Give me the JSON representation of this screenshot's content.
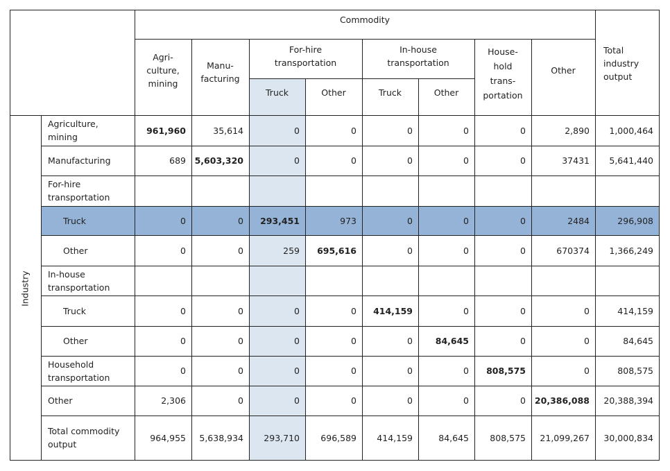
{
  "header": {
    "commodity": "Commodity",
    "industry": "Industry",
    "col_agri": "Agri-\nculture,\nmining",
    "col_manu": "Manu-\nfacturing",
    "col_forhire": "For-hire\ntransportation",
    "col_inhouse": "In-house\ntransportation",
    "col_household": "House-\nhold\ntrans-\nportation",
    "col_other": "Other",
    "col_total": "Total\nindustry\noutput",
    "sub_truck_1": "Truck",
    "sub_other_1": "Other",
    "sub_truck_2": "Truck",
    "sub_other_2": "Other"
  },
  "rows": [
    {
      "label": "Agriculture,\nmining",
      "values": [
        "961,960",
        "35,614",
        "0",
        "0",
        "0",
        "0",
        "0",
        "2,890",
        "1,000,464"
      ]
    },
    {
      "label": "Manufacturing",
      "values": [
        "689",
        "5,603,320",
        "0",
        "0",
        "0",
        "0",
        "0",
        "37431",
        "5,641,440"
      ]
    },
    {
      "label": "For-hire\ntransportation",
      "values": [
        "",
        "",
        "",
        "",
        "",
        "",
        "",
        "",
        ""
      ]
    },
    {
      "label": "Truck",
      "values": [
        "0",
        "0",
        "293,451",
        "973",
        "0",
        "0",
        "0",
        "2484",
        "296,908"
      ]
    },
    {
      "label": "Other",
      "values": [
        "0",
        "0",
        "259",
        "695,616",
        "0",
        "0",
        "0",
        "670374",
        "1,366,249"
      ]
    },
    {
      "label": "In-house\ntransportation",
      "values": [
        "",
        "",
        "",
        "",
        "",
        "",
        "",
        "",
        ""
      ]
    },
    {
      "label": "Truck",
      "values": [
        "0",
        "0",
        "0",
        "0",
        "414,159",
        "0",
        "0",
        "0",
        "414,159"
      ]
    },
    {
      "label": "Other",
      "values": [
        "0",
        "0",
        "0",
        "0",
        "0",
        "84,645",
        "0",
        "0",
        "84,645"
      ]
    },
    {
      "label": "Household\ntransportation",
      "values": [
        "0",
        "0",
        "0",
        "0",
        "0",
        "0",
        "808,575",
        "0",
        "808,575"
      ]
    },
    {
      "label": "Other",
      "values": [
        "2,306",
        "0",
        "0",
        "0",
        "0",
        "0",
        "0",
        "20,386,088",
        "20,388,394"
      ]
    },
    {
      "label": "Total commodity\noutput",
      "values": [
        "964,955",
        "5,638,934",
        "293,710",
        "696,589",
        "414,159",
        "84,645",
        "808,575",
        "21,099,267",
        "30,000,834"
      ]
    }
  ],
  "colors": {
    "highlight_row": "#95b3d7",
    "highlight_col": "#dce6f1",
    "grid": "#222222"
  }
}
